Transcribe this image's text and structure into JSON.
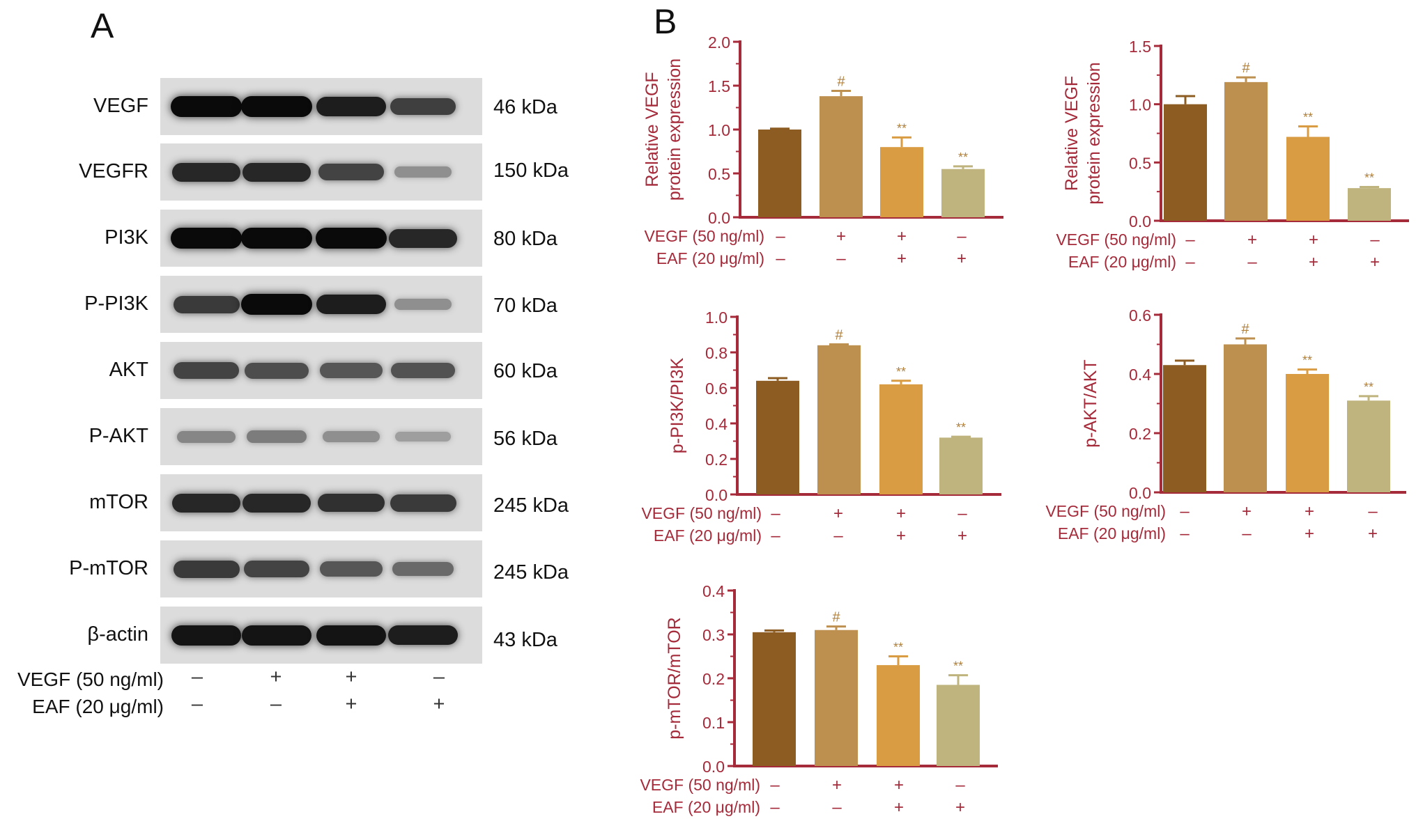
{
  "panel_a": {
    "letter": "A",
    "rows": [
      {
        "protein": "VEGF",
        "kda": "46 kDa",
        "bands": [
          1.0,
          1.0,
          0.9,
          0.72
        ]
      },
      {
        "protein": "VEGFR",
        "kda": "150 kDa",
        "bands": [
          0.85,
          0.85,
          0.7,
          0.3
        ]
      },
      {
        "protein": "PI3K",
        "kda": "80 kDa",
        "bands": [
          1.0,
          1.0,
          1.0,
          0.85
        ]
      },
      {
        "protein": "P-PI3K",
        "kda": "70 kDa",
        "bands": [
          0.75,
          1.0,
          0.9,
          0.3
        ]
      },
      {
        "protein": "AKT",
        "kda": "60 kDa",
        "bands": [
          0.7,
          0.65,
          0.6,
          0.62
        ]
      },
      {
        "protein": "P-AKT",
        "kda": "56 kDa",
        "bands": [
          0.35,
          0.4,
          0.3,
          0.22
        ]
      },
      {
        "protein": "mTOR",
        "kda": "245 kDa",
        "bands": [
          0.85,
          0.85,
          0.8,
          0.75
        ]
      },
      {
        "protein": "P-mTOR",
        "kda": "245 kDa",
        "bands": [
          0.75,
          0.7,
          0.6,
          0.5
        ]
      },
      {
        "protein": "β-actin",
        "kda": "43 kDa",
        "bands": [
          0.95,
          0.95,
          0.95,
          0.9
        ]
      }
    ],
    "treatments": [
      {
        "label": "VEGF (50 ng/ml)",
        "signs": [
          "–",
          "+",
          "+",
          "–"
        ]
      },
      {
        "label": "EAF (20 μg/ml)",
        "signs": [
          "–",
          "–",
          "+",
          "+"
        ]
      }
    ]
  },
  "panel_b": {
    "letter": "B",
    "colors": [
      "#8c5c22",
      "#be9050",
      "#d99c42",
      "#bfb47e"
    ],
    "axis_color": "#a52a3a",
    "label_color": "#a52a3a",
    "annot_color": "#b0803e"
  },
  "chart_data": [
    {
      "type": "bar",
      "ylabel": [
        "Relative VEGF",
        "protein expression"
      ],
      "ylim": [
        0,
        2.0
      ],
      "yticks": [
        "0.0",
        "0.5",
        "1.0",
        "1.5",
        "2.0"
      ],
      "values": [
        1.0,
        1.38,
        0.8,
        0.55
      ],
      "errors": [
        0.01,
        0.06,
        0.11,
        0.03
      ],
      "annotations": [
        "",
        "#",
        "**",
        "**"
      ],
      "treatments": [
        {
          "label": "VEGF (50 ng/ml)",
          "signs": [
            "–",
            "+",
            "+",
            "–"
          ]
        },
        {
          "label": "EAF (20 μg/ml)",
          "signs": [
            "–",
            "–",
            "+",
            "+"
          ]
        }
      ]
    },
    {
      "type": "bar",
      "ylabel": [
        "Relative VEGF",
        "protein expression"
      ],
      "ylim": [
        0,
        1.5
      ],
      "yticks": [
        "0.0",
        "0.5",
        "1.0",
        "1.5"
      ],
      "values": [
        1.0,
        1.19,
        0.72,
        0.28
      ],
      "errors": [
        0.07,
        0.04,
        0.09,
        0.01
      ],
      "annotations": [
        "",
        "#",
        "**",
        "**"
      ],
      "treatments": [
        {
          "label": "VEGF (50 ng/ml)",
          "signs": [
            "–",
            "+",
            "+",
            "–"
          ]
        },
        {
          "label": "EAF (20 μg/ml)",
          "signs": [
            "–",
            "–",
            "+",
            "+"
          ]
        }
      ]
    },
    {
      "type": "bar",
      "ylabel": [
        "p-PI3K/PI3K"
      ],
      "ylim": [
        0,
        1.0
      ],
      "yticks": [
        "0.0",
        "0.2",
        "0.4",
        "0.6",
        "0.8",
        "1.0"
      ],
      "values": [
        0.64,
        0.84,
        0.62,
        0.32
      ],
      "errors": [
        0.015,
        0.005,
        0.02,
        0.005
      ],
      "annotations": [
        "",
        "#",
        "**",
        "**"
      ],
      "treatments": [
        {
          "label": "VEGF (50 ng/ml)",
          "signs": [
            "–",
            "+",
            "+",
            "–"
          ]
        },
        {
          "label": "EAF (20 μg/ml)",
          "signs": [
            "–",
            "–",
            "+",
            "+"
          ]
        }
      ]
    },
    {
      "type": "bar",
      "ylabel": [
        "p-AKT/AKT"
      ],
      "ylim": [
        0,
        0.6
      ],
      "yticks": [
        "0.0",
        "0.2",
        "0.4",
        "0.6"
      ],
      "values": [
        0.43,
        0.5,
        0.4,
        0.31
      ],
      "errors": [
        0.015,
        0.02,
        0.015,
        0.015
      ],
      "annotations": [
        "",
        "#",
        "**",
        "**"
      ],
      "treatments": [
        {
          "label": "VEGF (50 ng/ml)",
          "signs": [
            "–",
            "+",
            "+",
            "–"
          ]
        },
        {
          "label": "EAF (20 μg/ml)",
          "signs": [
            "–",
            "–",
            "+",
            "+"
          ]
        }
      ]
    },
    {
      "type": "bar",
      "ylabel": [
        "p-mTOR/mTOR"
      ],
      "ylim": [
        0,
        0.4
      ],
      "yticks": [
        "0.0",
        "0.1",
        "0.2",
        "0.3",
        "0.4"
      ],
      "values": [
        0.305,
        0.31,
        0.23,
        0.185
      ],
      "errors": [
        0.004,
        0.008,
        0.02,
        0.022
      ],
      "annotations": [
        "",
        "#",
        "**",
        "**"
      ],
      "treatments": [
        {
          "label": "VEGF (50 ng/ml)",
          "signs": [
            "–",
            "+",
            "+",
            "–"
          ]
        },
        {
          "label": "EAF (20 μg/ml)",
          "signs": [
            "–",
            "–",
            "+",
            "+"
          ]
        }
      ]
    }
  ]
}
